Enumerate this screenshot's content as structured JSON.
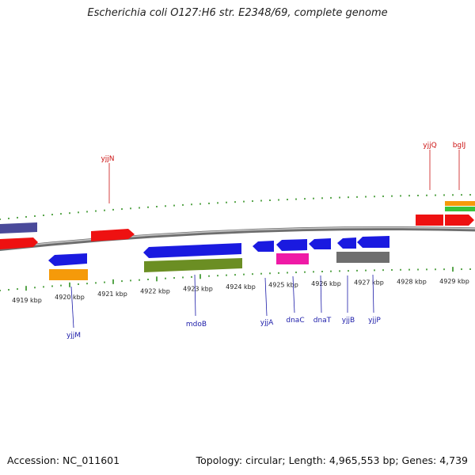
{
  "title": "Escherichia coli O127:H6 str. E2348/69, complete genome",
  "footer": {
    "accession": "Accession: NC_011601",
    "summary": "Topology: circular; Length: 4,965,553 bp; Genes: 4,739"
  },
  "colors": {
    "backbone": "#8a8a8a",
    "tick": "#2f8f1f",
    "forward_label": "#cc1111",
    "reverse_label": "#1a1aa8",
    "forward_gene": "#ee1111",
    "reverse_gene": "#1a1ae0"
  },
  "scale_labels": [
    "4919 kbp",
    "4920 kbp",
    "4921 kbp",
    "4922 kbp",
    "4923 kbp",
    "4924 kbp",
    "4925 kbp",
    "4926 kbp",
    "4927 kbp",
    "4928 kbp",
    "4929 kbp"
  ],
  "gene_labels_forward": [
    "yjjN",
    "yjjQ",
    "bglJ"
  ],
  "gene_labels_reverse": [
    "yjjM",
    "mdoB",
    "yjjA",
    "dnaC",
    "dnaT",
    "yjjB",
    "yjjP"
  ]
}
